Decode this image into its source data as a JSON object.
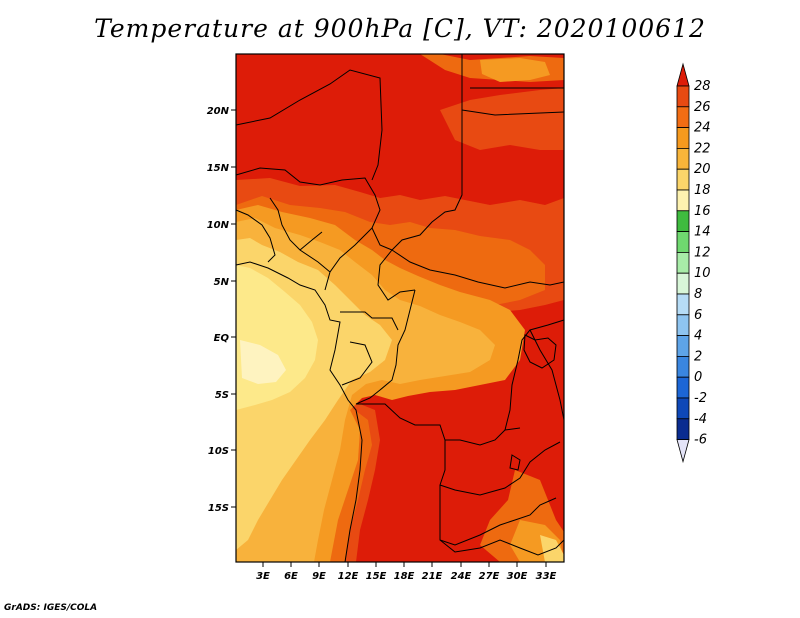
{
  "title": "Temperature at 900hPa [C], VT: 2020100612",
  "footer": "GrADS: IGES/COLA",
  "map": {
    "lat_labels": [
      "20N",
      "15N",
      "10N",
      "5N",
      "EQ",
      "5S",
      "10S",
      "15S"
    ],
    "lon_labels": [
      "3E",
      "6E",
      "9E",
      "12E",
      "15E",
      "18E",
      "21E",
      "24E",
      "27E",
      "30E",
      "33E"
    ],
    "fill_colors": {
      "t16_18": "#fde98a",
      "t18_20": "#fbd56a",
      "t20_22": "#f8b23c",
      "t22_24": "#f59a22",
      "t24_26": "#ee6a10",
      "t26_28": "#e23a0c",
      "t28_plus": "#dd1c08"
    }
  },
  "colorbar": {
    "levels": [
      "28",
      "26",
      "24",
      "22",
      "20",
      "18",
      "16",
      "14",
      "12",
      "10",
      "8",
      "6",
      "4",
      "2",
      "0",
      "-2",
      "-4",
      "-6"
    ],
    "colors": [
      "#dd1c08",
      "#e84a12",
      "#f26d14",
      "#f69a1e",
      "#f8b53a",
      "#fbd56a",
      "#fdf2b0",
      "#3fbb3f",
      "#6fd86f",
      "#a8eca8",
      "#d8f6d8",
      "#b6dcf6",
      "#8ec4f0",
      "#5ea4e8",
      "#3a86e0",
      "#1c66d6",
      "#0e48b8",
      "#0a2c90",
      "#08127a"
    ]
  }
}
